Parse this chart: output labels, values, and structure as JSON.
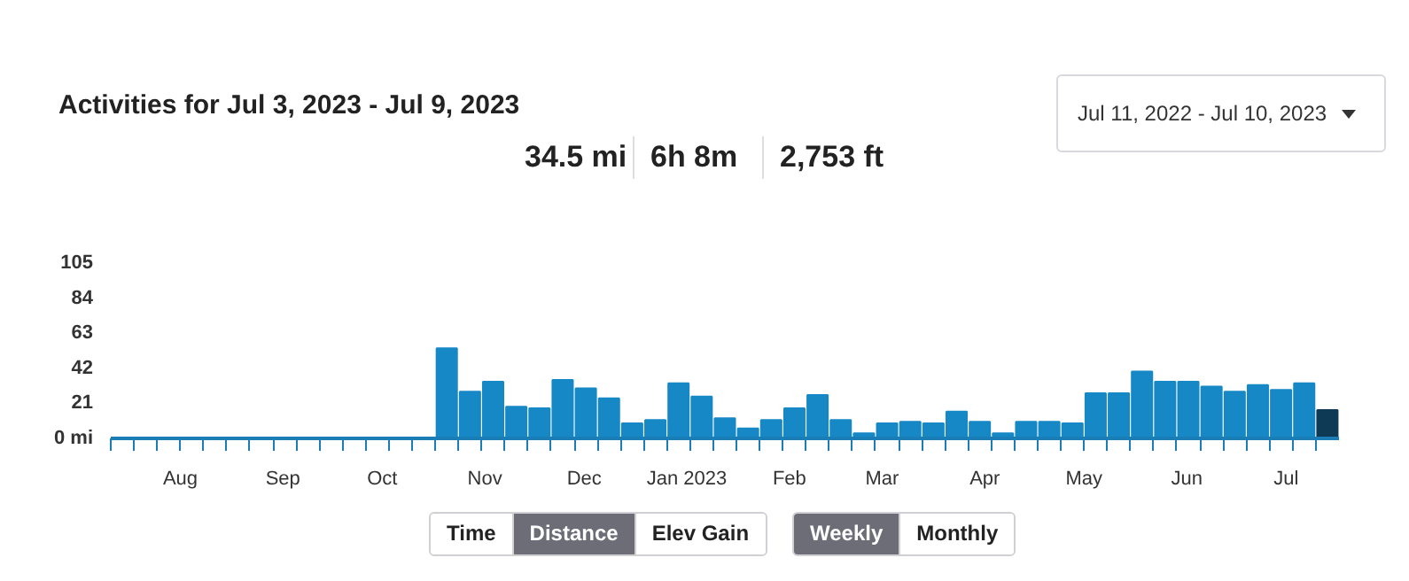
{
  "chart_data": {
    "type": "bar",
    "title": "Activities for Jul 3, 2023 - Jul 9, 2023",
    "x": [
      "2022-07-14T12:00",
      "2022-07-21T12:00",
      "2022-07-28T12:00",
      "2022-08-04T12:00",
      "2022-08-11T12:00",
      "2022-08-18T12:00",
      "2022-08-25T12:00",
      "2022-09-01T12:00",
      "2022-09-08T12:00",
      "2022-09-15T12:00",
      "2022-09-22T12:00",
      "2022-09-29T12:00",
      "2022-10-06T12:00",
      "2022-10-13T12:00",
      "2022-10-20T12:00",
      "2022-10-27T12:00",
      "2022-11-03T12:00",
      "2022-11-10T12:00",
      "2022-11-17T12:00",
      "2022-11-24T12:00",
      "2022-12-01T12:00",
      "2022-12-08T12:00",
      "2022-12-15T12:00",
      "2022-12-22T12:00",
      "2022-12-29T12:00",
      "2023-01-05T12:00",
      "2023-01-12T12:00",
      "2023-01-19T12:00",
      "2023-01-26T12:00",
      "2023-02-02T12:00",
      "2023-02-09T12:00",
      "2023-02-16T12:00",
      "2023-02-23T12:00",
      "2023-03-02T12:00",
      "2023-03-09T12:00",
      "2023-03-16T12:00",
      "2023-03-23T12:00",
      "2023-03-30T12:00",
      "2023-04-06T12:00",
      "2023-04-13T12:00",
      "2023-04-20T12:00",
      "2023-04-27T12:00",
      "2023-05-04T12:00",
      "2023-05-11T12:00",
      "2023-05-18T12:00",
      "2023-05-25T12:00",
      "2023-06-01T12:00",
      "2023-06-08T12:00",
      "2023-06-15T12:00",
      "2023-06-22T12:00",
      "2023-06-29T12:00",
      "2023-07-06T12:00",
      "2023-07-13T12:00"
    ],
    "values": [
      0,
      0,
      0,
      0,
      0,
      0,
      0,
      0,
      0,
      0,
      0,
      0,
      0,
      0,
      54,
      28,
      34,
      19,
      18,
      35,
      30,
      24,
      9,
      11,
      33,
      25,
      12,
      6,
      11,
      18,
      26,
      11,
      3,
      9,
      10,
      9,
      16,
      10,
      3,
      10,
      10,
      9,
      27,
      27,
      40,
      34,
      34,
      31,
      28,
      32,
      29,
      33,
      17
    ],
    "colors": [
      "#1788c6",
      "#1788c6",
      "#1788c6",
      "#1788c6",
      "#1788c6",
      "#1788c6",
      "#1788c6",
      "#1788c6",
      "#1788c6",
      "#1788c6",
      "#1788c6",
      "#1788c6",
      "#1788c6",
      "#1788c6",
      "#1788c6",
      "#1788c6",
      "#1788c6",
      "#1788c6",
      "#1788c6",
      "#1788c6",
      "#1788c6",
      "#1788c6",
      "#1788c6",
      "#1788c6",
      "#1788c6",
      "#1788c6",
      "#1788c6",
      "#1788c6",
      "#1788c6",
      "#1788c6",
      "#1788c6",
      "#1788c6",
      "#1788c6",
      "#1788c6",
      "#1788c6",
      "#1788c6",
      "#1788c6",
      "#1788c6",
      "#1788c6",
      "#1788c6",
      "#1788c6",
      "#1788c6",
      "#1788c6",
      "#1788c6",
      "#1788c6",
      "#1788c6",
      "#1788c6",
      "#1788c6",
      "#1788c6",
      "#1788c6",
      "#1788c6",
      "#1788c6",
      "#0e3a55"
    ],
    "xlim": [
      "2022-07-11",
      "2023-07-17"
    ],
    "xticks": [
      {
        "value": "2022-07-11",
        "label": null
      },
      {
        "value": "2022-07-18",
        "label": null
      },
      {
        "value": "2022-07-25",
        "label": null
      },
      {
        "value": "2022-08-01",
        "label": null
      },
      {
        "value": "2022-08-08",
        "label": null
      },
      {
        "value": "2022-08-15",
        "label": null
      },
      {
        "value": "2022-08-22",
        "label": null
      },
      {
        "value": "2022-08-29",
        "label": null
      },
      {
        "value": "2022-09-05",
        "label": null
      },
      {
        "value": "2022-09-12",
        "label": null
      },
      {
        "value": "2022-09-19",
        "label": null
      },
      {
        "value": "2022-09-26",
        "label": null
      },
      {
        "value": "2022-10-03",
        "label": null
      },
      {
        "value": "2022-10-10",
        "label": null
      },
      {
        "value": "2022-10-17",
        "label": null
      },
      {
        "value": "2022-10-24",
        "label": null
      },
      {
        "value": "2022-10-31",
        "label": null
      },
      {
        "value": "2022-11-07",
        "label": null
      },
      {
        "value": "2022-11-14",
        "label": null
      },
      {
        "value": "2022-11-21",
        "label": null
      },
      {
        "value": "2022-11-28",
        "label": null
      },
      {
        "value": "2022-12-05",
        "label": null
      },
      {
        "value": "2022-12-12",
        "label": null
      },
      {
        "value": "2022-12-19",
        "label": null
      },
      {
        "value": "2022-12-26",
        "label": null
      },
      {
        "value": "2023-01-02",
        "label": null
      },
      {
        "value": "2023-01-09",
        "label": null
      },
      {
        "value": "2023-01-16",
        "label": null
      },
      {
        "value": "2023-01-23",
        "label": null
      },
      {
        "value": "2023-01-30",
        "label": null
      },
      {
        "value": "2023-02-06",
        "label": null
      },
      {
        "value": "2023-02-13",
        "label": null
      },
      {
        "value": "2023-02-20",
        "label": null
      },
      {
        "value": "2023-02-27",
        "label": null
      },
      {
        "value": "2023-03-06",
        "label": null
      },
      {
        "value": "2023-03-13",
        "label": null
      },
      {
        "value": "2023-03-20",
        "label": null
      },
      {
        "value": "2023-03-27",
        "label": null
      },
      {
        "value": "2023-04-03",
        "label": null
      },
      {
        "value": "2023-04-10",
        "label": null
      },
      {
        "value": "2023-04-17",
        "label": null
      },
      {
        "value": "2023-04-24",
        "label": null
      },
      {
        "value": "2023-05-01",
        "label": null
      },
      {
        "value": "2023-05-08",
        "label": null
      },
      {
        "value": "2023-05-15",
        "label": null
      },
      {
        "value": "2023-05-22",
        "label": null
      },
      {
        "value": "2023-05-29",
        "label": null
      },
      {
        "value": "2023-06-05",
        "label": null
      },
      {
        "value": "2023-06-12",
        "label": null
      },
      {
        "value": "2023-06-19",
        "label": null
      },
      {
        "value": "2023-06-26",
        "label": null
      },
      {
        "value": "2023-07-03",
        "label": null
      },
      {
        "value": "2023-07-10",
        "label": null
      },
      {
        "value": "2022-08-01",
        "label": "Aug"
      },
      {
        "value": "2022-09-01",
        "label": "Sep"
      },
      {
        "value": "2022-10-01",
        "label": "Oct"
      },
      {
        "value": "2022-11-01",
        "label": "Nov"
      },
      {
        "value": "2022-12-01",
        "label": "Dec"
      },
      {
        "value": "2023-01-01",
        "label": "Jan 2023"
      },
      {
        "value": "2023-02-01",
        "label": "Feb"
      },
      {
        "value": "2023-03-01",
        "label": "Mar"
      },
      {
        "value": "2023-04-01",
        "label": "Apr"
      },
      {
        "value": "2023-05-01",
        "label": "May"
      },
      {
        "value": "2023-06-01",
        "label": "Jun"
      },
      {
        "value": "2023-07-01",
        "label": "Jul"
      }
    ],
    "ylim": [
      0,
      105
    ],
    "yticks": [
      {
        "value": 0,
        "label": "0 mi"
      },
      21,
      42,
      63,
      84,
      105
    ],
    "grid": false,
    "annotations": [
      "34.5 mi",
      "6h 8m",
      "2,753 ft",
      "Jul 11, 2022 - Jul 10, 2023",
      "Time",
      "Distance",
      "Elev Gain",
      "Weekly",
      "Monthly"
    ]
  }
}
